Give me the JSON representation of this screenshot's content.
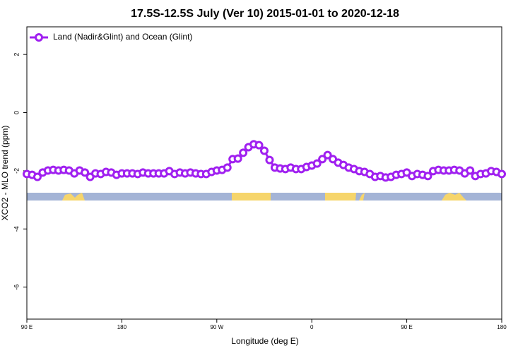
{
  "chart_data": {
    "type": "line",
    "title": "17.5S-12.5S July (Ver 10)   2015-01-01 to 2020-12-18",
    "x_label": "Longitude (deg E)",
    "y_label": "XCO2 - MLO trend (ppm)",
    "xlim": [
      90,
      540
    ],
    "ylim": [
      -7.1,
      2.95
    ],
    "xticks": [
      {
        "value": 90,
        "label": "90 E"
      },
      180,
      {
        "value": 270,
        "label": "90 W"
      },
      {
        "value": 360,
        "label": "0"
      },
      {
        "value": 450,
        "label": "90 E"
      },
      {
        "value": 540,
        "label": "180"
      }
    ],
    "yticks": [
      2,
      0,
      -2,
      -4,
      -6
    ],
    "legend_position": "top-left",
    "x": [
      90,
      95,
      100,
      105,
      110,
      115,
      120,
      125,
      130,
      135,
      140,
      145,
      150,
      155,
      160,
      165,
      170,
      175,
      180,
      185,
      190,
      195,
      200,
      205,
      210,
      215,
      220,
      225,
      230,
      235,
      240,
      245,
      250,
      255,
      260,
      265,
      270,
      275,
      280,
      285,
      290,
      295,
      300,
      305,
      310,
      315,
      320,
      325,
      330,
      335,
      340,
      345,
      350,
      355,
      360,
      365,
      370,
      375,
      380,
      385,
      390,
      395,
      400,
      405,
      410,
      415,
      420,
      425,
      430,
      435,
      440,
      445,
      450,
      455,
      460,
      465,
      470,
      475,
      480,
      485,
      490,
      495,
      500,
      505,
      510,
      515,
      520,
      525,
      530,
      535,
      540
    ],
    "series": [
      {
        "name": "Land (Nadir&Glint) and Ocean (Glint)",
        "color": "#a020f0",
        "values": [
          -2.11,
          -2.14,
          -2.21,
          -2.06,
          -1.99,
          -1.97,
          -1.99,
          -1.97,
          -1.99,
          -2.09,
          -1.99,
          -2.06,
          -2.21,
          -2.09,
          -2.11,
          -2.04,
          -2.06,
          -2.14,
          -2.09,
          -2.09,
          -2.09,
          -2.11,
          -2.06,
          -2.09,
          -2.09,
          -2.09,
          -2.09,
          -2.01,
          -2.11,
          -2.06,
          -2.09,
          -2.06,
          -2.09,
          -2.11,
          -2.11,
          -2.04,
          -1.99,
          -1.97,
          -1.89,
          -1.6,
          -1.58,
          -1.38,
          -1.19,
          -1.09,
          -1.12,
          -1.31,
          -1.63,
          -1.89,
          -1.92,
          -1.94,
          -1.89,
          -1.94,
          -1.94,
          -1.87,
          -1.82,
          -1.75,
          -1.6,
          -1.46,
          -1.6,
          -1.72,
          -1.8,
          -1.89,
          -1.94,
          -2.01,
          -2.04,
          -2.11,
          -2.21,
          -2.18,
          -2.23,
          -2.21,
          -2.14,
          -2.11,
          -2.06,
          -2.18,
          -2.11,
          -2.14,
          -2.18,
          -2.01,
          -1.97,
          -1.99,
          -1.99,
          -1.97,
          -1.99,
          -2.09,
          -1.99,
          -2.18,
          -2.11,
          -2.09,
          -2.01,
          -2.04,
          -2.11
        ]
      }
    ]
  }
}
